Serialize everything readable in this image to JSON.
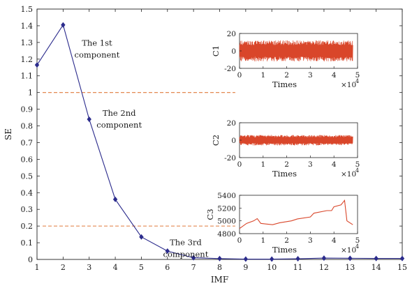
{
  "chart_data": [
    {
      "type": "line",
      "xlabel": "IMF",
      "ylabel": "SE",
      "x": [
        1,
        2,
        3,
        4,
        5,
        6,
        7,
        8,
        9,
        10,
        11,
        12,
        13,
        14,
        15
      ],
      "xticks": [
        1,
        2,
        3,
        4,
        5,
        6,
        7,
        8,
        9,
        10,
        11,
        12,
        13,
        14,
        15
      ],
      "yticks": [
        0,
        0.1,
        0.2,
        0.3,
        0.4,
        0.5,
        0.6,
        0.7,
        0.8,
        0.9,
        1,
        1.1,
        1.2,
        1.3,
        1.4,
        1.5
      ],
      "xlim": [
        1,
        15
      ],
      "ylim": [
        0,
        1.5
      ],
      "series": [
        {
          "color": "#2b2b8c",
          "marker": "diamond",
          "values": [
            1.165,
            1.405,
            0.84,
            0.36,
            0.135,
            0.05,
            0.01,
            0.005,
            0.002,
            0.002,
            0.004,
            0.008,
            0.007,
            0.006,
            0.006
          ]
        }
      ],
      "thresholds": [
        {
          "y": 1.0,
          "x_end": 8.6,
          "color": "#e07b3c"
        },
        {
          "y": 0.2,
          "x_end": 8.6,
          "color": "#e07b3c"
        }
      ],
      "annotations": [
        {
          "lines": [
            "The 1st",
            "component"
          ],
          "x": 3.3,
          "y": 1.28
        },
        {
          "lines": [
            "The 2nd",
            "component"
          ],
          "x": 4.15,
          "y": 0.86
        },
        {
          "lines": [
            "The 3rd",
            "component"
          ],
          "x": 6.7,
          "y": 0.085
        }
      ]
    },
    {
      "type": "line",
      "ylabel": "C1",
      "xlabel": "Times",
      "xexp": "×10",
      "exponent": "4",
      "xlim": [
        0,
        5
      ],
      "ylim": [
        -20,
        20
      ],
      "xticks": [
        0,
        1,
        2,
        3,
        4,
        5
      ],
      "yticks": [
        -20,
        0,
        20
      ],
      "signal": {
        "kind": "noise",
        "x_range": [
          0,
          4.8
        ],
        "amplitude": 12,
        "color": "#d9462a"
      }
    },
    {
      "type": "line",
      "ylabel": "C2",
      "xlabel": "Times",
      "xexp": "×10",
      "exponent": "4",
      "xlim": [
        0,
        5
      ],
      "ylim": [
        -20,
        20
      ],
      "xticks": [
        0,
        1,
        2,
        3,
        4,
        5
      ],
      "yticks": [
        -20,
        0,
        20
      ],
      "signal": {
        "kind": "noise",
        "x_range": [
          0,
          4.8
        ],
        "amplitude": 6,
        "color": "#d9462a"
      }
    },
    {
      "type": "line",
      "ylabel": "C3",
      "xlabel": "Times",
      "xexp": "×10",
      "exponent": "4",
      "xlim": [
        0,
        5
      ],
      "ylim": [
        4800,
        5400
      ],
      "xticks": [
        0,
        1,
        2,
        3,
        4,
        5
      ],
      "yticks": [
        4800,
        5000,
        5200,
        5400
      ],
      "signal": {
        "kind": "trend",
        "color": "#d9462a",
        "x": [
          0,
          0.3,
          0.6,
          0.75,
          0.9,
          1.4,
          1.7,
          2.2,
          2.45,
          3.0,
          3.15,
          3.7,
          3.9,
          4.0,
          4.3,
          4.45,
          4.55,
          4.8
        ],
        "values": [
          4880,
          4960,
          5000,
          5035,
          4960,
          4940,
          4970,
          5000,
          5030,
          5060,
          5120,
          5160,
          5160,
          5220,
          5250,
          5320,
          5000,
          4940
        ]
      }
    }
  ]
}
